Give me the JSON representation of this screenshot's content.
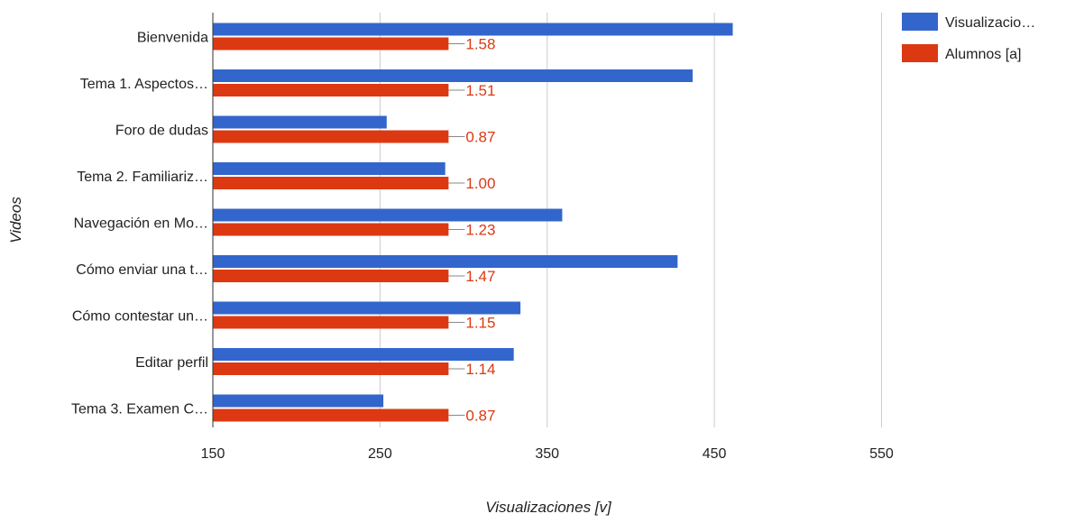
{
  "chart_data": {
    "type": "bar",
    "orientation": "horizontal",
    "xlabel": "Visualizaciones [v]",
    "ylabel": "Videos",
    "xlim": [
      150,
      600
    ],
    "xticks": [
      150,
      250,
      350,
      450,
      550
    ],
    "grid": true,
    "legend_position": "top-right",
    "categories": [
      "Bienvenida",
      "Tema 1. Aspectos…",
      "Foro de dudas",
      "Tema 2. Familiariz…",
      "Navegación en Mo…",
      "Cómo enviar una t…",
      "Cómo contestar un…",
      "Editar perfil",
      "Tema 3. Examen C…"
    ],
    "series": [
      {
        "name": "Visualizacio…",
        "color": "#3366cc",
        "values": [
          461,
          437,
          254,
          289,
          359,
          428,
          334,
          330,
          252
        ]
      },
      {
        "name": "Alumnos [a]",
        "color": "#dc3912",
        "values": [
          291,
          291,
          291,
          291,
          291,
          291,
          291,
          291,
          291
        ],
        "data_labels": [
          "1.58",
          "1.51",
          "0.87",
          "1.00",
          "1.23",
          "1.47",
          "1.15",
          "1.14",
          "0.87"
        ]
      }
    ]
  }
}
